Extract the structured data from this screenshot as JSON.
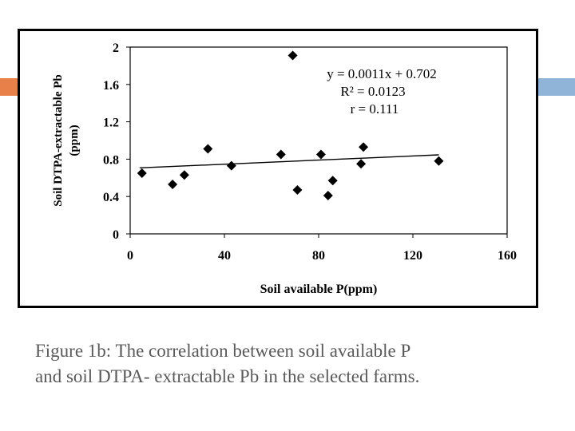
{
  "accent_color": "#e8804a",
  "accent_color_right": "#8fb4d8",
  "caption": {
    "line1": "Figure 1b: The correlation between soil available P",
    "line2": "and soil DTPA- extractable Pb in the selected farms."
  },
  "chart_data": {
    "type": "scatter",
    "title": "",
    "xlabel": "Soil available P(ppm)",
    "ylabel_line1": "Soil DTPA-extractable Pb",
    "ylabel_line2": "(ppm)",
    "xlim": [
      0,
      160
    ],
    "ylim": [
      0,
      2
    ],
    "x_ticks": [
      "0",
      "40",
      "80",
      "120",
      "160"
    ],
    "y_ticks": [
      "0",
      "0.4",
      "0.8",
      "1.2",
      "1.6",
      "2"
    ],
    "grid": false,
    "marker": "diamond",
    "points": [
      {
        "x": 5,
        "y": 0.65
      },
      {
        "x": 18,
        "y": 0.53
      },
      {
        "x": 23,
        "y": 0.63
      },
      {
        "x": 33,
        "y": 0.91
      },
      {
        "x": 43,
        "y": 0.73
      },
      {
        "x": 64,
        "y": 0.85
      },
      {
        "x": 69,
        "y": 1.91
      },
      {
        "x": 71,
        "y": 0.47
      },
      {
        "x": 81,
        "y": 0.85
      },
      {
        "x": 84,
        "y": 0.41
      },
      {
        "x": 86,
        "y": 0.57
      },
      {
        "x": 98,
        "y": 0.75
      },
      {
        "x": 99,
        "y": 0.93
      },
      {
        "x": 131,
        "y": 0.78
      }
    ],
    "trendline": {
      "slope": 0.0011,
      "intercept": 0.702,
      "x_range": [
        4,
        131
      ]
    },
    "annotations": [
      "y = 0.0011x + 0.702",
      "R² = 0.0123",
      "r = 0.111"
    ]
  }
}
